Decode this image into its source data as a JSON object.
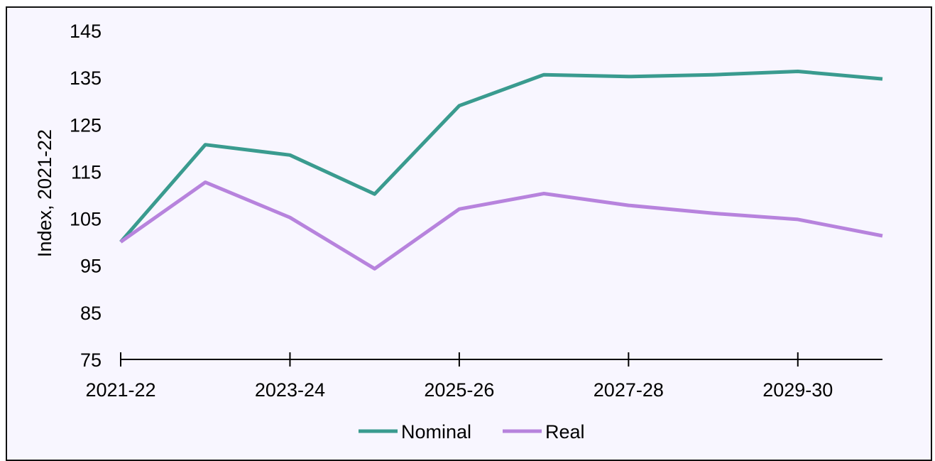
{
  "chart_data": {
    "type": "line",
    "ylabel": "Index, 2021-22",
    "xlabel": "",
    "ylim": [
      75,
      145
    ],
    "yticks": [
      75,
      85,
      95,
      105,
      115,
      125,
      135,
      145
    ],
    "x": [
      "2021-22",
      "2022-23",
      "2023-24",
      "2024-25",
      "2025-26",
      "2026-27",
      "2027-28",
      "2028-29",
      "2029-30",
      "2030-31"
    ],
    "xtick_labels": [
      "2021-22",
      "2023-24",
      "2025-26",
      "2027-28",
      "2029-30"
    ],
    "grid": false,
    "legend_position": "bottom",
    "series": [
      {
        "name": "Nominal",
        "color": "#3a9b8f",
        "values": [
          100,
          120.7,
          118.5,
          110.2,
          129.0,
          135.6,
          135.2,
          135.6,
          136.3,
          134.7
        ]
      },
      {
        "name": "Real",
        "color": "#b783dd",
        "values": [
          100,
          112.7,
          105.2,
          94.3,
          107.0,
          110.3,
          107.8,
          106.1,
          104.8,
          101.3
        ]
      }
    ]
  }
}
